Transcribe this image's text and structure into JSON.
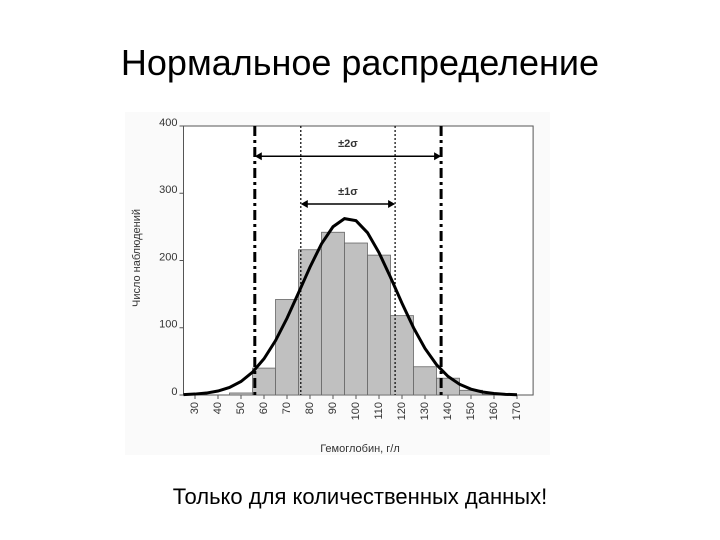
{
  "title": "Нормальное распределение",
  "footer": "Только для количественных данных!",
  "chart_data": {
    "type": "histogram",
    "xlabel": "Гемоглобин, г/л",
    "ylabel": "Число наблюдений",
    "bins": [
      45,
      55,
      65,
      75,
      85,
      95,
      105,
      115,
      125,
      135,
      145,
      155,
      165
    ],
    "values": [
      3,
      40,
      142,
      216,
      242,
      226,
      208,
      118,
      42,
      25,
      7,
      1
    ],
    "color": "#c0c0c0",
    "curve": {
      "x": [
        25,
        30,
        35,
        40,
        45,
        50,
        55,
        60,
        65,
        70,
        75,
        80,
        85,
        90,
        95,
        100,
        105,
        110,
        115,
        120,
        125,
        130,
        135,
        140,
        145,
        150,
        155,
        160,
        165,
        170
      ],
      "y": [
        0.6,
        1.4,
        2.9,
        5.9,
        11.2,
        20.1,
        33.9,
        53.9,
        80.8,
        114.1,
        151.8,
        190.2,
        224.8,
        250.2,
        262.3,
        259.2,
        241.4,
        211.7,
        175.1,
        136.4,
        100.1,
        69.2,
        45.1,
        27.7,
        16.0,
        8.7,
        4.5,
        2.2,
        1.0,
        0.4
      ]
    },
    "annotations": [
      {
        "label": "±2σ",
        "x": [
          56,
          137
        ],
        "y": 355
      },
      {
        "label": "±1σ",
        "x": [
          76,
          117
        ],
        "y": 284
      }
    ],
    "xlim": [
      25,
      177
    ],
    "ylim": [
      0,
      400
    ],
    "xticks": [
      30,
      40,
      50,
      60,
      70,
      80,
      90,
      100,
      110,
      120,
      130,
      140,
      150,
      160,
      170
    ],
    "yticks": [
      0,
      100,
      200,
      300,
      400
    ]
  }
}
